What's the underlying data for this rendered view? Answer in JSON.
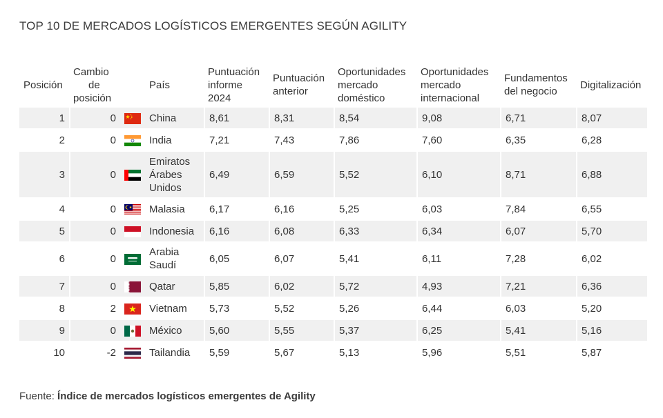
{
  "title": "TOP 10 DE MERCADOS LOGÍSTICOS EMERGENTES SEGÚN AGILITY",
  "headers": {
    "posicion": "Posición",
    "cambio": [
      "Cambio",
      "de",
      "posición"
    ],
    "pais": "País",
    "puntuacion_2024": [
      "Puntuación",
      "informe",
      "2024"
    ],
    "puntuacion_anterior": [
      "Puntuación",
      "anterior"
    ],
    "oport_domestico": [
      "Oportunidades",
      "mercado",
      "doméstico"
    ],
    "oport_internacional": [
      "Oportunidades",
      "mercado",
      "internacional"
    ],
    "fundamentos": [
      "Fundamentos",
      "del negocio"
    ],
    "digitalizacion": "Digitalización"
  },
  "rows": [
    {
      "pos": "1",
      "change": "0",
      "flag": "china-flag-icon",
      "country": [
        "China"
      ],
      "p2024": "8,61",
      "prev": "8,31",
      "dom": "8,54",
      "intl": "9,08",
      "fund": "6,71",
      "dig": "8,07"
    },
    {
      "pos": "2",
      "change": "0",
      "flag": "india-flag-icon",
      "country": [
        "India"
      ],
      "p2024": "7,21",
      "prev": "7,43",
      "dom": "7,86",
      "intl": "7,60",
      "fund": "6,35",
      "dig": "6,28"
    },
    {
      "pos": "3",
      "change": "0",
      "flag": "uae-flag-icon",
      "country": [
        "Emiratos",
        "Árabes",
        "Unidos"
      ],
      "p2024": "6,49",
      "prev": "6,59",
      "dom": "5,52",
      "intl": "6,10",
      "fund": "8,71",
      "dig": "6,88"
    },
    {
      "pos": "4",
      "change": "0",
      "flag": "malaysia-flag-icon",
      "country": [
        "Malasia"
      ],
      "p2024": "6,17",
      "prev": "6,16",
      "dom": "5,25",
      "intl": "6,03",
      "fund": "7,84",
      "dig": "6,55"
    },
    {
      "pos": "5",
      "change": "0",
      "flag": "indonesia-flag-icon",
      "country": [
        "Indonesia"
      ],
      "p2024": "6,16",
      "prev": "6,08",
      "dom": "6,33",
      "intl": "6,34",
      "fund": "6,07",
      "dig": "5,70"
    },
    {
      "pos": "6",
      "change": "0",
      "flag": "saudi-flag-icon",
      "country": [
        "Arabia",
        "Saudí"
      ],
      "p2024": "6,05",
      "prev": "6,07",
      "dom": "5,41",
      "intl": "6,11",
      "fund": "7,28",
      "dig": "6,02"
    },
    {
      "pos": "7",
      "change": "0",
      "flag": "qatar-flag-icon",
      "country": [
        "Qatar"
      ],
      "p2024": "5,85",
      "prev": "6,02",
      "dom": "5,72",
      "intl": "4,93",
      "fund": "7,21",
      "dig": "6,36"
    },
    {
      "pos": "8",
      "change": "2",
      "flag": "vietnam-flag-icon",
      "country": [
        "Vietnam"
      ],
      "p2024": "5,73",
      "prev": "5,52",
      "dom": "5,26",
      "intl": "6,44",
      "fund": "6,03",
      "dig": "5,20"
    },
    {
      "pos": "9",
      "change": "0",
      "flag": "mexico-flag-icon",
      "country": [
        "México"
      ],
      "p2024": "5,60",
      "prev": "5,55",
      "dom": "5,37",
      "intl": "6,25",
      "fund": "5,41",
      "dig": "5,16"
    },
    {
      "pos": "10",
      "change": "-2",
      "flag": "thailand-flag-icon",
      "country": [
        "Tailandia"
      ],
      "p2024": "5,59",
      "prev": "5,67",
      "dom": "5,13",
      "intl": "5,96",
      "fund": "5,51",
      "dig": "5,87"
    }
  ],
  "source": {
    "prefix": "Fuente: ",
    "text": "Índice de mercados logísticos emergentes de Agility"
  }
}
